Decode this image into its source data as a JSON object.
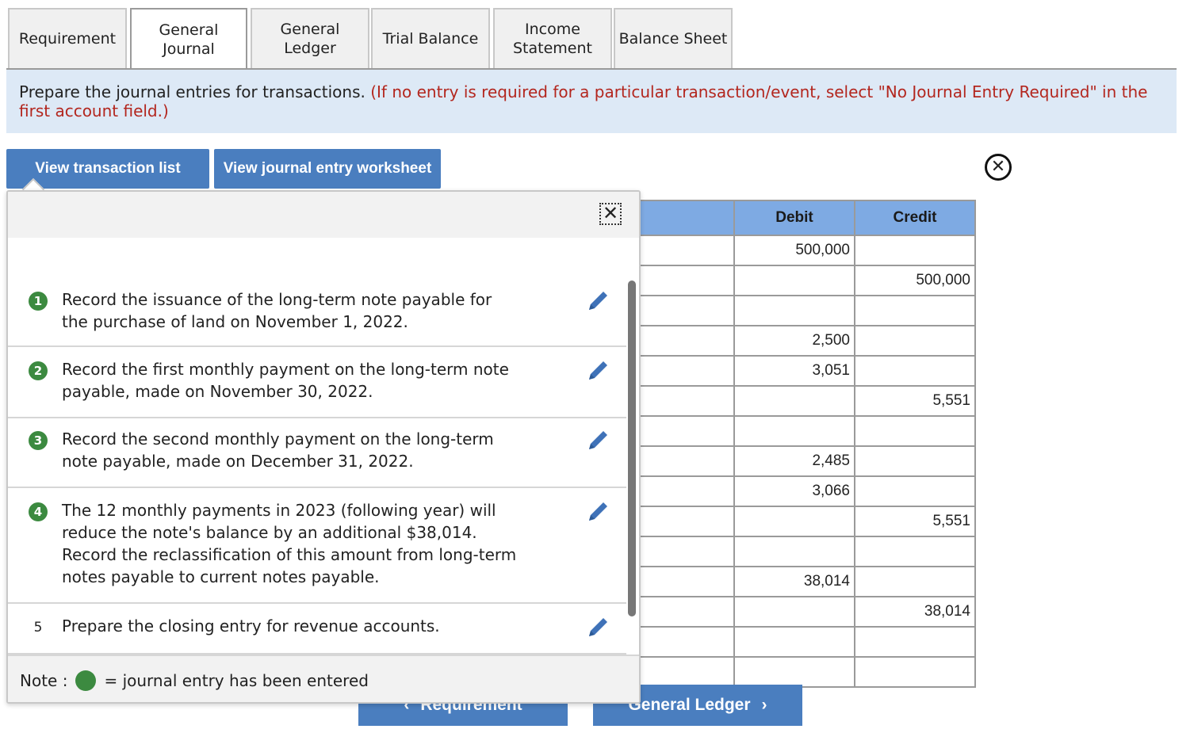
{
  "tabs": [
    {
      "line1": "Requirement",
      "line2": ""
    },
    {
      "line1": "General",
      "line2": "Journal"
    },
    {
      "line1": "General",
      "line2": "Ledger"
    },
    {
      "line1": "Trial Balance",
      "line2": ""
    },
    {
      "line1": "Income",
      "line2": "Statement"
    },
    {
      "line1": "Balance Sheet",
      "line2": ""
    }
  ],
  "active_tab": "General Journal",
  "instructions": {
    "main": "Prepare the journal entries for transactions.",
    "note": "(If no entry is required for a particular transaction/event, select \"No Journal Entry Required\" in the first account field.)"
  },
  "buttons": {
    "view_transaction_list": "View transaction list",
    "view_journal_entry_worksheet": "View journal entry worksheet"
  },
  "table": {
    "headers": {
      "debit": "Debit",
      "credit": "Credit"
    },
    "rows": [
      {
        "debit": "500,000",
        "credit": ""
      },
      {
        "debit": "",
        "credit": "500,000"
      },
      {
        "debit": "",
        "credit": ""
      },
      {
        "debit": "2,500",
        "credit": ""
      },
      {
        "debit": "3,051",
        "credit": ""
      },
      {
        "debit": "",
        "credit": "5,551"
      },
      {
        "debit": "",
        "credit": ""
      },
      {
        "debit": "2,485",
        "credit": ""
      },
      {
        "debit": "3,066",
        "credit": ""
      },
      {
        "debit": "",
        "credit": "5,551"
      },
      {
        "debit": "",
        "credit": ""
      },
      {
        "debit": "38,014",
        "credit": ""
      },
      {
        "debit": "",
        "credit": "38,014"
      },
      {
        "debit": "",
        "credit": ""
      },
      {
        "debit": "",
        "credit": ""
      }
    ]
  },
  "popup": {
    "items": [
      {
        "num": "1",
        "entered": true,
        "lines": [
          "Record the issuance of the long-term note payable for",
          "the purchase of land on November 1, 2022."
        ]
      },
      {
        "num": "2",
        "entered": true,
        "lines": [
          "Record the first monthly payment on the long-term note",
          "payable, made on November 30, 2022."
        ]
      },
      {
        "num": "3",
        "entered": true,
        "lines": [
          "Record the second monthly payment on the long-term",
          "note payable, made on December 31, 2022."
        ]
      },
      {
        "num": "4",
        "entered": true,
        "lines": [
          "The 12 monthly payments in 2023 (following year) will",
          "reduce the note's balance by an additional $38,014.",
          "Record the reclassification of this amount from long-term",
          "notes payable to current notes payable."
        ]
      },
      {
        "num": "5",
        "entered": false,
        "lines": [
          "Prepare the closing entry for revenue accounts."
        ]
      }
    ],
    "note_label": "Note :",
    "note_text": "= journal entry has been entered"
  },
  "nav": {
    "prev": "Requirement",
    "next": "General Ledger"
  },
  "colors": {
    "accent_blue": "#4a7ebf",
    "header_blue": "#7eaae3",
    "instruction_bg": "#dde9f6",
    "note_red": "#b3261e",
    "entered_green": "#3c8a40"
  }
}
